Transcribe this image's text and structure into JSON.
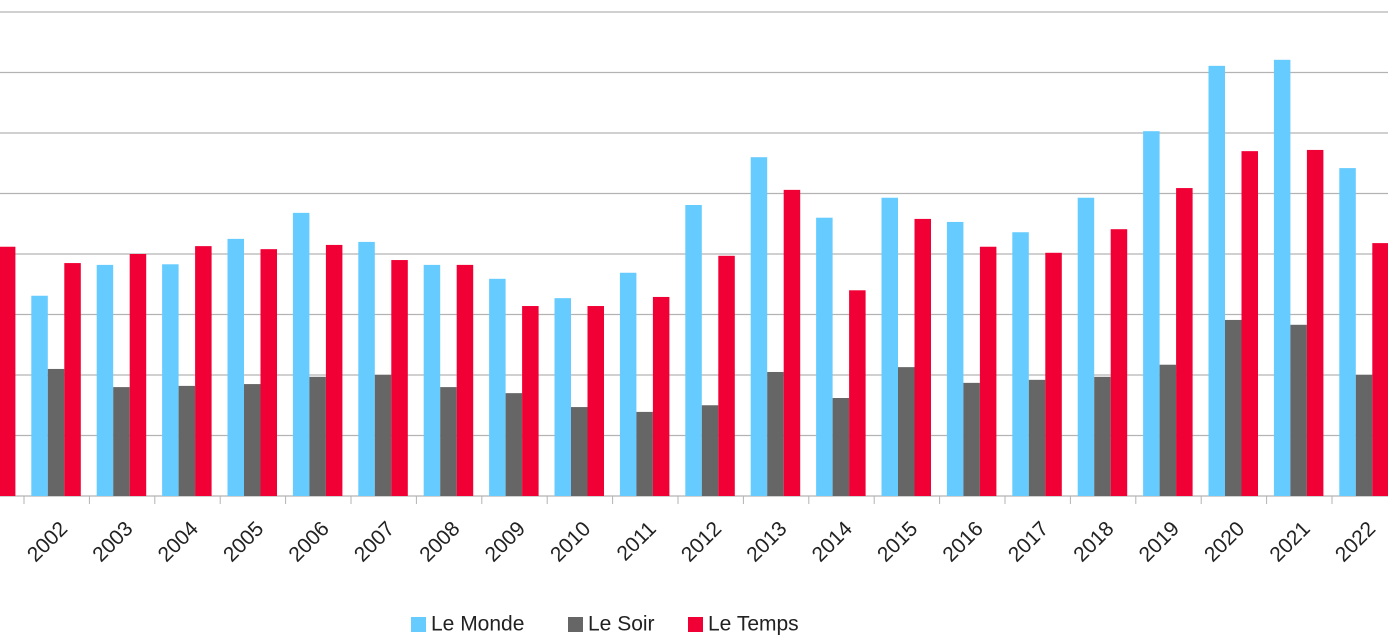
{
  "chart_data": {
    "type": "bar",
    "categories": [
      null,
      "2002",
      "2003",
      "2004",
      "2005",
      "2006",
      "2007",
      "2008",
      "2009",
      "2010",
      "2011",
      "2012",
      "2013",
      "2014",
      "2015",
      "2016",
      "2017",
      "2018",
      "2019",
      "2020",
      "2021",
      "2022"
    ],
    "series": [
      {
        "name": "Le Monde",
        "color": "#66ccff",
        "values": [
          null,
          3.31,
          3.82,
          3.83,
          4.25,
          4.68,
          4.2,
          3.82,
          3.59,
          3.27,
          3.69,
          4.81,
          5.6,
          4.6,
          4.93,
          4.53,
          4.36,
          4.93,
          6.03,
          7.11,
          7.21,
          5.42
        ]
      },
      {
        "name": "Le Soir",
        "color": "#666666",
        "values": [
          null,
          2.1,
          1.8,
          1.82,
          1.85,
          1.97,
          2.0,
          1.8,
          1.7,
          1.47,
          1.39,
          1.5,
          2.05,
          1.62,
          2.13,
          1.87,
          1.92,
          1.97,
          2.17,
          2.91,
          2.83,
          2.0
        ]
      },
      {
        "name": "Le Temps",
        "color": "#f10035",
        "values": [
          4.12,
          3.85,
          4.0,
          4.13,
          4.08,
          4.15,
          3.9,
          3.82,
          3.14,
          3.14,
          3.29,
          3.97,
          5.06,
          3.4,
          4.58,
          4.12,
          4.02,
          4.41,
          5.09,
          5.7,
          5.72,
          4.18
        ]
      }
    ],
    "ylim": [
      0,
      8
    ],
    "yticks": [
      0,
      1,
      2,
      3,
      4,
      5,
      6,
      7,
      8
    ],
    "ytick_labels": false,
    "grid": true,
    "legend": "bottom"
  }
}
